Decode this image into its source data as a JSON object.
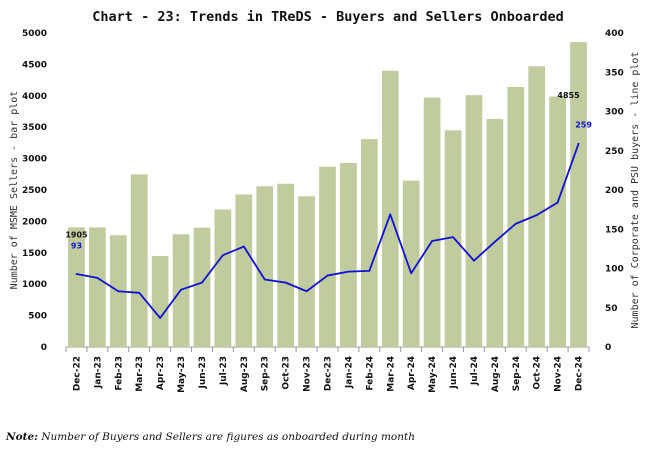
{
  "chart_data": {
    "type": "bar+line",
    "title": "Chart - 23: Trends in TReDS - Buyers and Sellers Onboarded",
    "categories": [
      "Dec-22",
      "Jan-23",
      "Feb-23",
      "Mar-23",
      "Apr-23",
      "May-23",
      "Jun-23",
      "Jul-23",
      "Aug-23",
      "Sep-23",
      "Oct-23",
      "Nov-23",
      "Dec-23",
      "Jan-24",
      "Feb-24",
      "Mar-24",
      "Apr-24",
      "May-24",
      "Jun-24",
      "Jul-24",
      "Aug-24",
      "Sep-24",
      "Oct-24",
      "Nov-24",
      "Dec-24"
    ],
    "series": [
      {
        "name": "MSME Sellers",
        "type": "bar",
        "axis": "left",
        "color": "#c0cc9e",
        "values": [
          1905,
          1905,
          1780,
          2750,
          1450,
          1795,
          1900,
          2190,
          2430,
          2560,
          2600,
          2400,
          2870,
          2930,
          3310,
          4400,
          2650,
          3970,
          3450,
          4010,
          3630,
          4140,
          4470,
          3990,
          4855
        ]
      },
      {
        "name": "Corporate and PSU buyers",
        "type": "line",
        "axis": "right",
        "color": "#1010d6",
        "values": [
          93,
          88,
          71,
          69,
          37,
          73,
          82,
          117,
          128,
          86,
          82,
          71,
          91,
          96,
          97,
          169,
          94,
          135,
          140,
          110,
          134,
          157,
          168,
          184,
          259
        ]
      }
    ],
    "y_left": {
      "label": "Number of MSME Sellers - bar plot",
      "range": [
        0,
        5000
      ],
      "ticks": [
        0,
        500,
        1000,
        1500,
        2000,
        2500,
        3000,
        3500,
        4000,
        4500,
        5000
      ]
    },
    "y_right": {
      "label": "Number of Corporate and PSU buyers - line plot",
      "range": [
        0,
        400
      ],
      "ticks": [
        0,
        50,
        100,
        150,
        200,
        250,
        300,
        350,
        400
      ]
    },
    "data_labels": [
      {
        "series": "MSME Sellers",
        "category": "Dec-22",
        "text": "1905"
      },
      {
        "series": "Corporate and PSU buyers",
        "category": "Dec-22",
        "text": "93"
      },
      {
        "series": "MSME Sellers",
        "category": "Dec-24",
        "text": "4855"
      },
      {
        "series": "Corporate and PSU buyers",
        "category": "Dec-24",
        "text": "259"
      }
    ],
    "grid": false,
    "legend": "none"
  },
  "note": {
    "prefix": "Note:",
    "text": " Number of Buyers and Sellers are figures as onboarded during month"
  }
}
